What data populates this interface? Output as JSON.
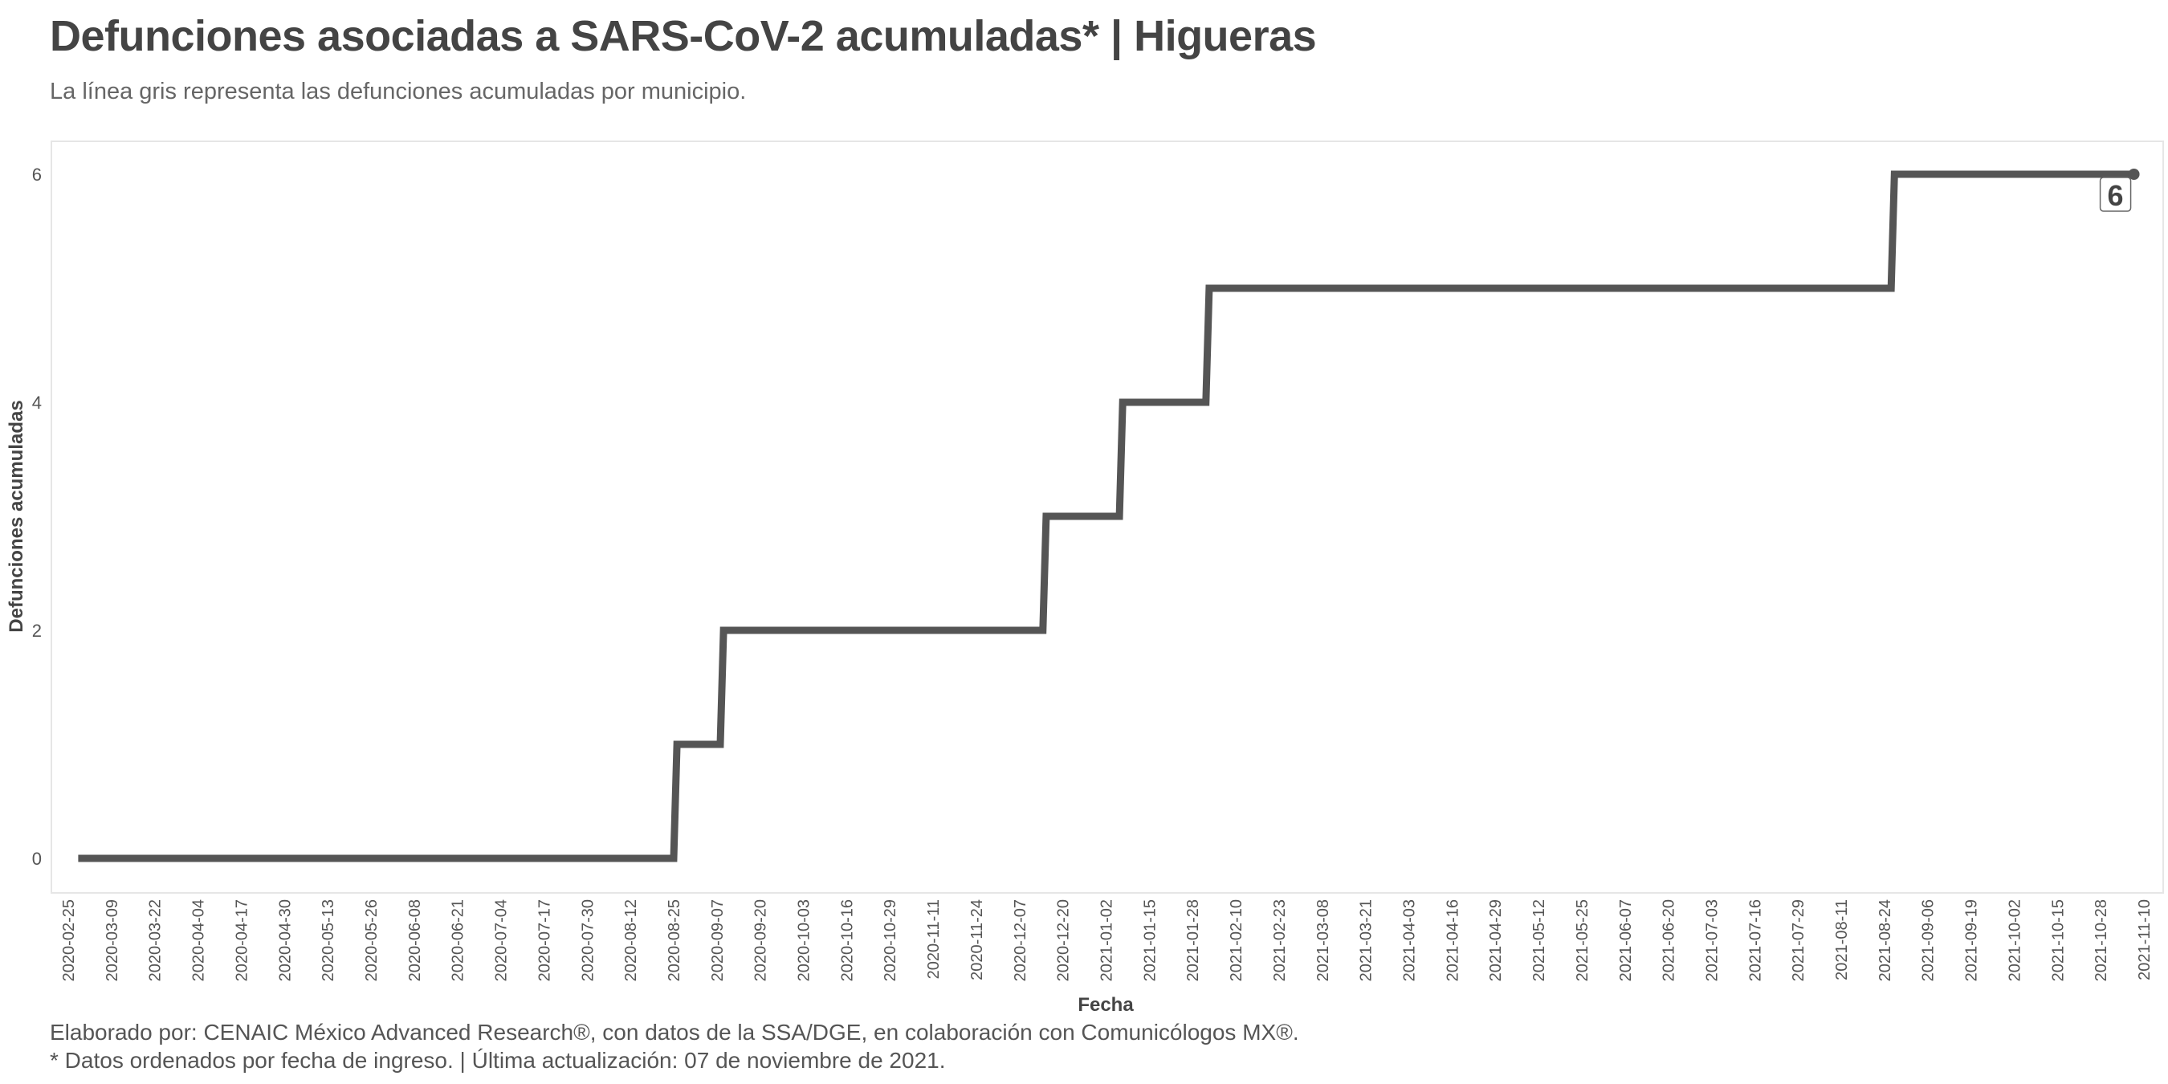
{
  "header": {
    "title": "Defunciones asociadas a SARS-CoV-2 acumuladas* | Higueras",
    "subtitle": "La línea gris representa las defunciones acumuladas por municipio."
  },
  "footer": {
    "caption_line1": "Elaborado por: CENAIC México Advanced Research®, con datos de la SSA/DGE, en colaboración con Comunicólogos MX®.",
    "caption_line2": "* Datos ordenados por fecha de ingreso. | Última actualización: 07 de noviembre de 2021."
  },
  "chart_data": {
    "type": "line",
    "step": true,
    "xlabel": "Fecha",
    "ylabel": "Defunciones acumuladas",
    "xlim": [
      "2020-02-25",
      "2021-11-10"
    ],
    "ylim": [
      0,
      6
    ],
    "yticks": [
      0,
      2,
      4,
      6
    ],
    "xticks": [
      "2020-02-25",
      "2020-03-09",
      "2020-03-22",
      "2020-04-04",
      "2020-04-17",
      "2020-04-30",
      "2020-05-13",
      "2020-05-26",
      "2020-06-08",
      "2020-06-21",
      "2020-07-04",
      "2020-07-17",
      "2020-07-30",
      "2020-08-12",
      "2020-08-25",
      "2020-09-07",
      "2020-09-20",
      "2020-10-03",
      "2020-10-16",
      "2020-10-29",
      "2020-11-11",
      "2020-11-24",
      "2020-12-07",
      "2020-12-20",
      "2021-01-02",
      "2021-01-15",
      "2021-01-28",
      "2021-02-10",
      "2021-02-23",
      "2021-03-08",
      "2021-03-21",
      "2021-04-03",
      "2021-04-16",
      "2021-04-29",
      "2021-05-12",
      "2021-05-25",
      "2021-06-07",
      "2021-06-20",
      "2021-07-03",
      "2021-07-16",
      "2021-07-29",
      "2021-08-11",
      "2021-08-24",
      "2021-09-06",
      "2021-09-19",
      "2021-10-02",
      "2021-10-15",
      "2021-10-28",
      "2021-11-10"
    ],
    "series": [
      {
        "x": [
          "2020-02-28",
          "2020-08-25",
          "2020-08-26",
          "2020-09-08",
          "2020-09-09",
          "2020-12-14",
          "2020-12-15",
          "2021-01-06",
          "2021-01-07",
          "2021-02-01",
          "2021-02-02",
          "2021-08-26",
          "2021-08-27",
          "2021-11-07"
        ],
        "y": [
          0,
          0,
          1,
          1,
          2,
          2,
          3,
          3,
          4,
          4,
          5,
          5,
          6,
          6
        ],
        "color": "#555555"
      }
    ],
    "end_label": "6",
    "grid": false,
    "colors": {
      "line": "#555555",
      "panel_border": "#e6e6e6",
      "text": "#444444"
    }
  }
}
